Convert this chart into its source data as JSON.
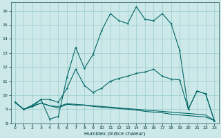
{
  "xlabel": "Humidex (Indice chaleur)",
  "background_color": "#cce8e8",
  "line_color": "#006666",
  "grid_color": "#99cccc",
  "xlim": [
    -0.5,
    23.5
  ],
  "ylim": [
    8.0,
    16.6
  ],
  "xticks": [
    0,
    1,
    2,
    3,
    4,
    5,
    6,
    7,
    8,
    9,
    10,
    11,
    12,
    13,
    14,
    15,
    16,
    17,
    18,
    19,
    20,
    21,
    22,
    23
  ],
  "yticks": [
    8,
    9,
    10,
    11,
    12,
    13,
    14,
    15,
    16
  ],
  "line1_x": [
    0,
    1,
    2,
    3,
    4,
    5,
    6,
    7,
    8,
    9,
    10,
    11,
    12,
    13,
    14,
    15,
    16,
    17,
    18,
    19,
    20,
    21,
    22,
    23
  ],
  "line1_y": [
    9.5,
    9.0,
    9.2,
    9.7,
    8.3,
    8.5,
    11.3,
    13.4,
    11.9,
    12.9,
    14.6,
    15.8,
    15.3,
    15.1,
    16.3,
    15.4,
    15.3,
    15.8,
    15.1,
    13.2,
    9.0,
    10.3,
    10.1,
    8.2
  ],
  "line2_x": [
    0,
    1,
    2,
    3,
    4,
    5,
    6,
    7,
    8,
    9,
    10,
    11,
    12,
    13,
    14,
    15,
    16,
    17,
    18,
    19,
    20,
    21,
    22,
    23
  ],
  "line2_y": [
    9.5,
    9.0,
    9.3,
    9.7,
    9.7,
    9.5,
    10.5,
    11.85,
    10.7,
    10.2,
    10.5,
    11.0,
    11.2,
    11.35,
    11.55,
    11.65,
    11.85,
    11.35,
    11.15,
    11.1,
    9.0,
    10.3,
    10.1,
    8.2
  ],
  "line3_x": [
    0,
    1,
    2,
    3,
    4,
    5,
    6,
    7,
    8,
    9,
    10,
    11,
    12,
    13,
    14,
    15,
    16,
    17,
    18,
    19,
    20,
    21,
    22,
    23
  ],
  "line3_y": [
    9.5,
    9.0,
    9.2,
    9.45,
    9.25,
    9.2,
    9.4,
    9.35,
    9.3,
    9.25,
    9.2,
    9.15,
    9.1,
    9.05,
    9.0,
    8.95,
    8.9,
    8.85,
    8.8,
    8.75,
    8.7,
    8.65,
    8.6,
    8.2
  ],
  "line4_x": [
    0,
    1,
    2,
    3,
    4,
    5,
    6,
    7,
    8,
    9,
    10,
    11,
    12,
    13,
    14,
    15,
    16,
    17,
    18,
    19,
    20,
    21,
    22,
    23
  ],
  "line4_y": [
    9.5,
    9.0,
    9.2,
    9.45,
    9.25,
    9.1,
    9.35,
    9.3,
    9.3,
    9.2,
    9.15,
    9.1,
    9.05,
    9.0,
    8.95,
    8.85,
    8.8,
    8.75,
    8.65,
    8.6,
    8.55,
    8.5,
    8.45,
    8.2
  ]
}
